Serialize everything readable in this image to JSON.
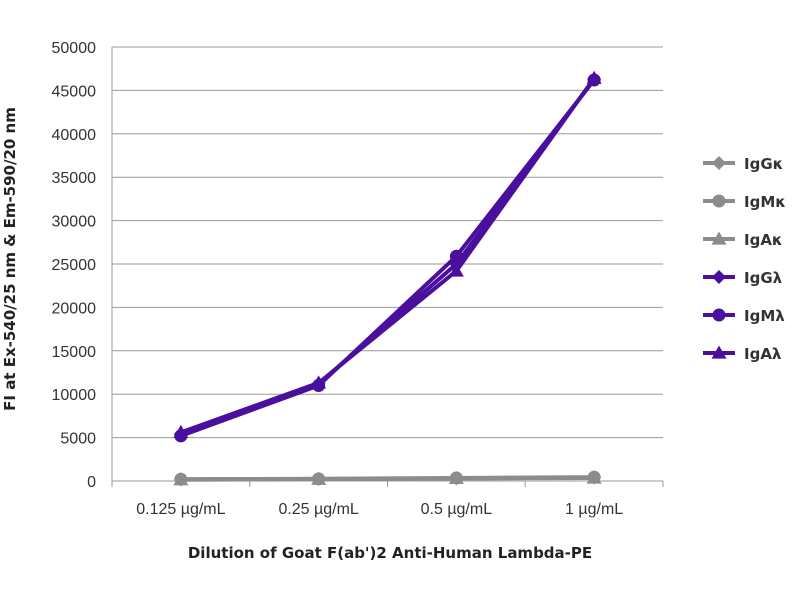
{
  "chart_data": {
    "type": "line",
    "title": "",
    "xlabel": "Dilution of Goat F(ab')2 Anti-Human Lambda-PE",
    "ylabel": "FI at Ex-540/25 nm & Em-590/20 nm",
    "categories": [
      "0.125 µg/mL",
      "0.25 µg/mL",
      "0.5 µg/mL",
      "1 µg/mL"
    ],
    "ylim": [
      0,
      50000
    ],
    "yticks": [
      "0",
      "5000",
      "10000",
      "15000",
      "20000",
      "25000",
      "30000",
      "35000",
      "40000",
      "45000",
      "50000"
    ],
    "grid": true,
    "legend_position": "right",
    "series": [
      {
        "name": "IgGκ",
        "marker": "diamond",
        "color": "#8c8c8c",
        "values": [
          200,
          250,
          300,
          400
        ]
      },
      {
        "name": "IgMκ",
        "marker": "circle",
        "color": "#8c8c8c",
        "values": [
          200,
          250,
          350,
          450
        ]
      },
      {
        "name": "IgAκ",
        "marker": "triangle",
        "color": "#8c8c8c",
        "values": [
          150,
          200,
          300,
          350
        ]
      },
      {
        "name": "IgGλ",
        "marker": "diamond",
        "color": "#4b0f9e",
        "values": [
          5400,
          11200,
          25000,
          46300
        ]
      },
      {
        "name": "IgMλ",
        "marker": "circle",
        "color": "#4b0f9e",
        "values": [
          5200,
          11000,
          25900,
          46200
        ]
      },
      {
        "name": "IgAλ",
        "marker": "triangle",
        "color": "#4b0f9e",
        "values": [
          5600,
          11300,
          24200,
          46400
        ]
      }
    ]
  }
}
